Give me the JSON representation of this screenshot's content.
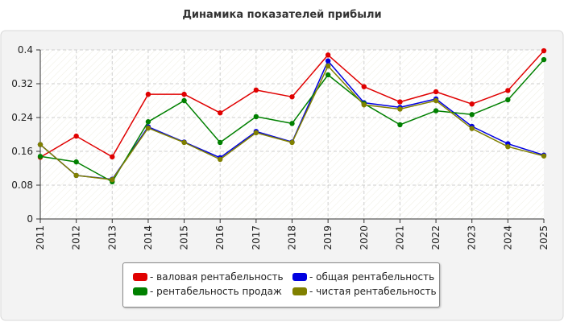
{
  "chart_data": {
    "type": "line",
    "title": "Динамика показателей прибыли",
    "categories": [
      "2011",
      "2012",
      "2013",
      "2014",
      "2015",
      "2016",
      "2017",
      "2018",
      "2019",
      "2020",
      "2021",
      "2022",
      "2023",
      "2024",
      "2025"
    ],
    "ylim": [
      0,
      0.4
    ],
    "yticks": [
      "0",
      "0.08",
      "0.16",
      "0.24",
      "0.32",
      "0.4"
    ],
    "grid": true,
    "legend_position": "bottom",
    "series": [
      {
        "name": "- валовая рентабельность",
        "color": "#e00000",
        "values": [
          0.146,
          0.196,
          0.147,
          0.295,
          0.295,
          0.251,
          0.305,
          0.289,
          0.388,
          0.313,
          0.277,
          0.301,
          0.272,
          0.304,
          0.398
        ]
      },
      {
        "name": "- общая рентабельность",
        "color": "#0000e0",
        "values": [
          0.176,
          0.103,
          0.094,
          0.218,
          0.182,
          0.145,
          0.207,
          0.182,
          0.374,
          0.275,
          0.264,
          0.284,
          0.219,
          0.178,
          0.151
        ]
      },
      {
        "name": "- рентабельность продаж",
        "color": "#008000",
        "values": [
          0.148,
          0.135,
          0.088,
          0.23,
          0.28,
          0.181,
          0.242,
          0.226,
          0.341,
          0.273,
          0.223,
          0.256,
          0.247,
          0.282,
          0.377
        ]
      },
      {
        "name": "- чистая рентабельность",
        "color": "#808000",
        "values": [
          0.176,
          0.103,
          0.093,
          0.215,
          0.181,
          0.141,
          0.204,
          0.181,
          0.362,
          0.27,
          0.26,
          0.28,
          0.214,
          0.171,
          0.149
        ]
      }
    ]
  },
  "legend": {
    "items": [
      {
        "label": "- валовая рентабельность",
        "color": "#e00000"
      },
      {
        "label": "- общая рентабельность",
        "color": "#0000e0"
      },
      {
        "label": "- рентабельность продаж",
        "color": "#008000"
      },
      {
        "label": "- чистая рентабельность",
        "color": "#808000"
      }
    ]
  }
}
